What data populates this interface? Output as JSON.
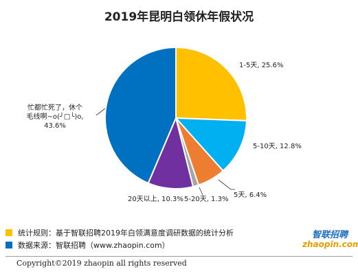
{
  "title": "2019年昆明白领休年假状况",
  "chart_data": {
    "type": "pie",
    "slices": [
      {
        "label": "1-5天, 25.6%",
        "name": "1-5天",
        "value": 25.6,
        "color": "#FFC000"
      },
      {
        "label": "5-10天, 12.8%",
        "name": "5-10天",
        "value": 12.8,
        "color": "#00B0F0"
      },
      {
        "label": "5天, 6.4%",
        "name": "5天",
        "value": 6.4,
        "color": "#ED7D31"
      },
      {
        "label": "5-20天, 1.3%",
        "name": "5-20天",
        "value": 1.3,
        "color": "#A5A5A5"
      },
      {
        "label": "20天以上, 10.3%",
        "name": "20天以上",
        "value": 10.3,
        "color": "#7030A0"
      },
      {
        "label_lines": [
          "忙都忙死了，休个",
          "毛线啊~o(╯□╰)o,",
          "43.6%"
        ],
        "name": "忙都忙死了，休个毛线啊~o(╯□╰)o",
        "value": 43.6,
        "color": "#0070C0"
      }
    ]
  },
  "notes": {
    "rule": "统计规则：基于智联招聘2019年白领满意度调研数据的统计分析",
    "source": "数据来源：智联招聘（www.zhaopin.com）"
  },
  "logo": {
    "text": "智联招聘",
    "subtext": "zhaopin.com"
  },
  "copyright": "Copyright©2019 zhaopin all rights reserved"
}
